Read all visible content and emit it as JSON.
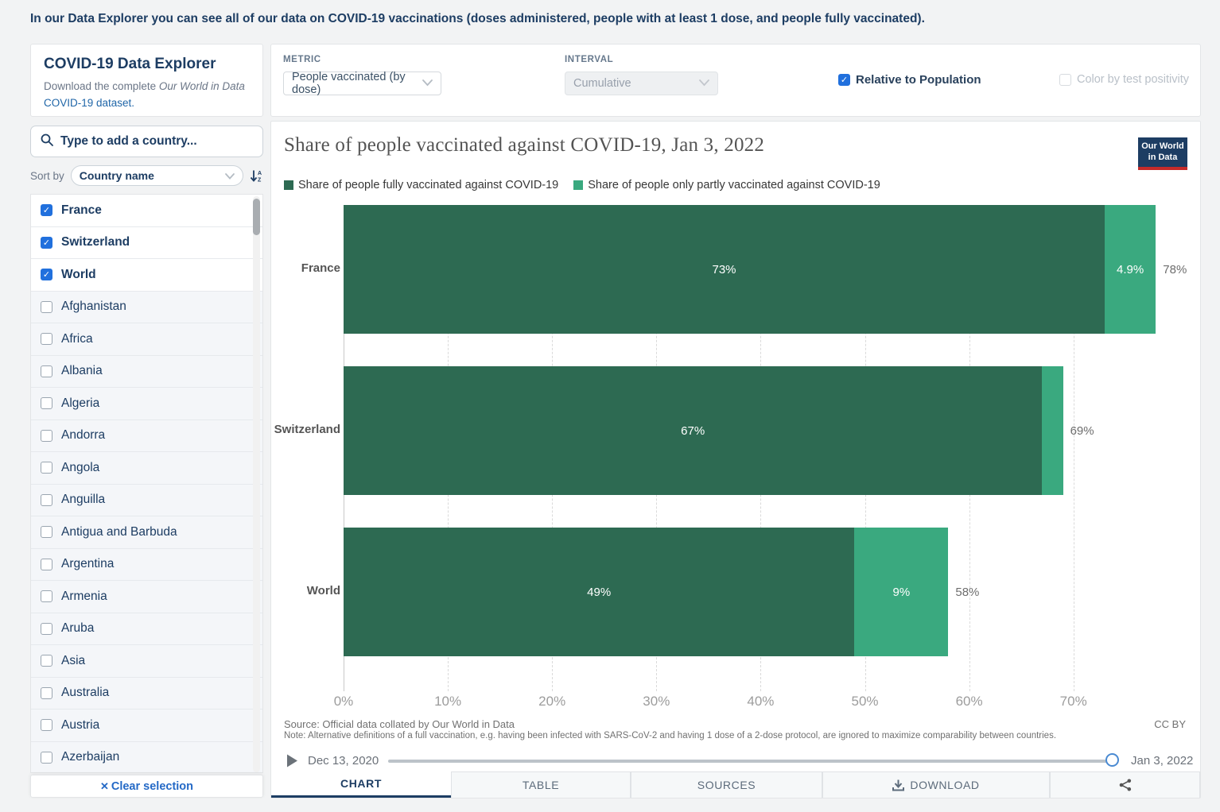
{
  "page": {
    "description": "In our Data Explorer you can see all of our data on COVID-19 vaccinations (doses administered, people with at least 1 dose, and people fully vaccinated)."
  },
  "sidebar": {
    "title": "COVID-19 Data Explorer",
    "subtitle_prefix": "Download the complete ",
    "subtitle_italic": "Our World in Data",
    "subtitle_link": "COVID-19 dataset.",
    "search_placeholder": "Type to add a country...",
    "sort_label": "Sort by",
    "sort_value": "Country name",
    "clear_label": "Clear selection",
    "clear_icon": "✕",
    "countries": [
      {
        "name": "France",
        "checked": true
      },
      {
        "name": "Switzerland",
        "checked": true
      },
      {
        "name": "World",
        "checked": true
      },
      {
        "name": "Afghanistan",
        "checked": false
      },
      {
        "name": "Africa",
        "checked": false
      },
      {
        "name": "Albania",
        "checked": false
      },
      {
        "name": "Algeria",
        "checked": false
      },
      {
        "name": "Andorra",
        "checked": false
      },
      {
        "name": "Angola",
        "checked": false
      },
      {
        "name": "Anguilla",
        "checked": false
      },
      {
        "name": "Antigua and Barbuda",
        "checked": false
      },
      {
        "name": "Argentina",
        "checked": false
      },
      {
        "name": "Armenia",
        "checked": false
      },
      {
        "name": "Aruba",
        "checked": false
      },
      {
        "name": "Asia",
        "checked": false
      },
      {
        "name": "Australia",
        "checked": false
      },
      {
        "name": "Austria",
        "checked": false
      },
      {
        "name": "Azerbaijan",
        "checked": false
      }
    ]
  },
  "controls": {
    "metric_label": "METRIC",
    "metric_value": "People vaccinated (by dose)",
    "interval_label": "INTERVAL",
    "interval_value": "Cumulative",
    "relative_label": "Relative to Population",
    "relative_checked": true,
    "color_by_label": "Color by test positivity",
    "color_by_checked": false
  },
  "chart": {
    "title": "Share of people vaccinated against COVID-19, Jan 3, 2022",
    "logo_line1": "Our World",
    "logo_line2": "in Data",
    "source": "Source: Official data collated by Our World in Data",
    "license": "CC BY",
    "note": "Note: Alternative definitions of a full vaccination, e.g. having been infected with SARS-CoV-2 and having 1 dose of a 2-dose protocol, are ignored to maximize comparability between countries.",
    "timeline": {
      "start": "Dec 13, 2020",
      "end": "Jan 3, 2022"
    },
    "tabs": [
      {
        "label": "CHART"
      },
      {
        "label": "TABLE"
      },
      {
        "label": "SOURCES"
      },
      {
        "label": "DOWNLOAD"
      }
    ]
  },
  "chart_data": {
    "type": "bar",
    "orientation": "horizontal",
    "stacked": true,
    "title": "Share of people vaccinated against COVID-19, Jan 3, 2022",
    "categories": [
      "France",
      "Switzerland",
      "World"
    ],
    "series": [
      {
        "name": "Share of people fully vaccinated against COVID-19",
        "color": "#2d6a52",
        "values": [
          73,
          67,
          49
        ],
        "labels": [
          "73%",
          "67%",
          "49%"
        ]
      },
      {
        "name": "Share of people only partly vaccinated against COVID-19",
        "color": "#3aa97f",
        "values": [
          4.9,
          2,
          9
        ],
        "labels": [
          "4.9%",
          "",
          "9%"
        ]
      }
    ],
    "totals": [
      78,
      69,
      58
    ],
    "total_labels": [
      "78%",
      "69%",
      "58%"
    ],
    "x_ticks": [
      "0%",
      "10%",
      "20%",
      "30%",
      "40%",
      "50%",
      "60%",
      "70%"
    ],
    "x_tick_values": [
      0,
      10,
      20,
      30,
      40,
      50,
      60,
      70
    ],
    "xlim": [
      0,
      78.5
    ],
    "grid": true,
    "legend_position": "top"
  }
}
